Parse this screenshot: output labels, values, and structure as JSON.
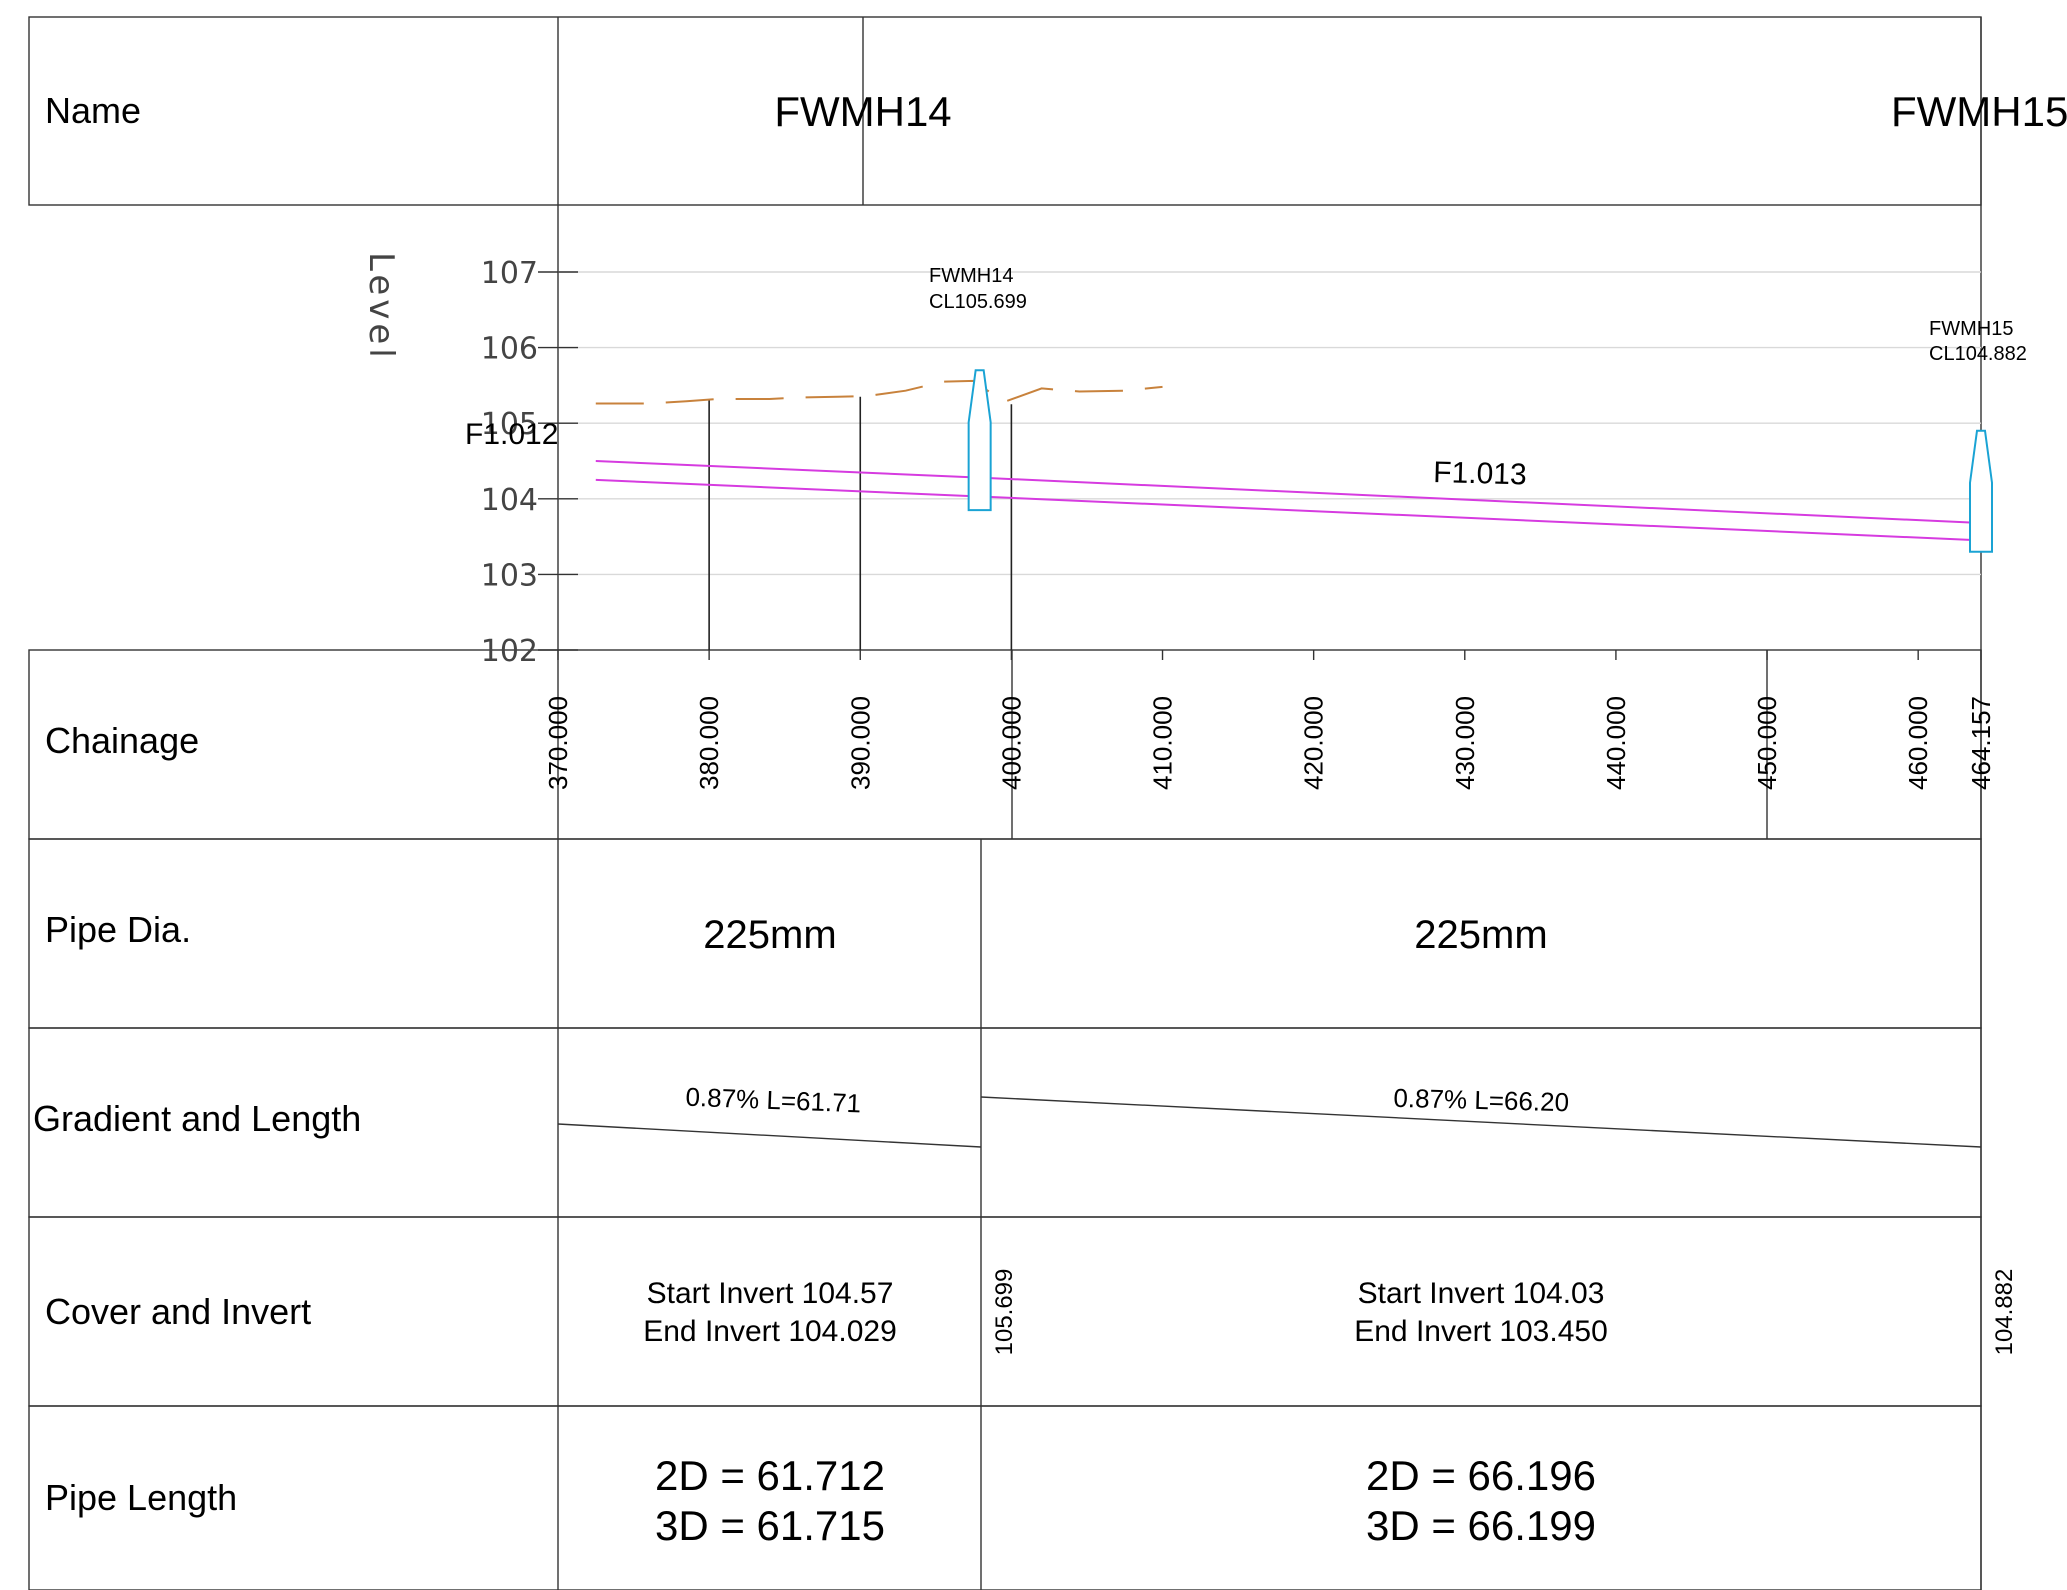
{
  "rows": {
    "name": "Name",
    "level": "Level",
    "chainage": "Chainage",
    "pipe_dia": "Pipe Dia.",
    "gradient": "Gradient and Length",
    "cover": "Cover and Invert",
    "pipe_length": "Pipe Length"
  },
  "manholes": [
    {
      "name": "FWMH14",
      "label": "FWMH14",
      "cover_label": "CL105.699",
      "chainage": 397.9,
      "cover_level": "105.699",
      "body_top": 105.7,
      "body_bottom": 103.85
    },
    {
      "name": "FWMH15",
      "label": "FWMH15",
      "cover_label": "CL104.882",
      "chainage": 464.157,
      "cover_level": "104.882",
      "body_top": 104.9,
      "body_bottom": 103.3
    }
  ],
  "pipes": [
    {
      "ref": "F1.012",
      "dia": "225mm",
      "gradient": "0.87% L=61.71",
      "invert": [
        "Start Invert 104.57",
        "End Invert 104.029"
      ],
      "length": [
        "2D = 61.712",
        "3D = 61.715"
      ]
    },
    {
      "ref": "F1.013",
      "dia": "225mm",
      "gradient": "0.87% L=66.20",
      "invert": [
        "Start Invert 104.03",
        "End Invert 103.450"
      ],
      "length": [
        "2D = 66.196",
        "3D = 66.199"
      ]
    }
  ],
  "colors": {
    "pipe": "#d63be0",
    "ground": "#c8823c",
    "manhole": "#1aa3d4",
    "grid": "#d9d9d9",
    "frame": "#333333"
  },
  "chart_data": {
    "type": "line",
    "xlabel": "Chainage",
    "ylabel": "Level",
    "xlim": [
      370.0,
      464.157
    ],
    "ylim": [
      102,
      107
    ],
    "yticks": [
      "102",
      "103",
      "104",
      "105",
      "106",
      "107"
    ],
    "xticks": [
      "370.000",
      "380.000",
      "390.000",
      "400.000",
      "410.000",
      "420.000",
      "430.000",
      "440.000",
      "450.000",
      "460.000",
      "464.157"
    ],
    "xtick_values": [
      370,
      380,
      390,
      400,
      410,
      420,
      430,
      440,
      450,
      460,
      464.157
    ],
    "series": [
      {
        "kind": "ground",
        "x": [
          372.5,
          376,
          378.5,
          380.5,
          384,
          386,
          388.5,
          390.5,
          393,
          395.5,
          397.5,
          399.5,
          402,
          404.5,
          407.5,
          410
        ],
        "y": [
          105.26,
          105.26,
          105.29,
          105.32,
          105.32,
          105.34,
          105.35,
          105.36,
          105.43,
          105.55,
          105.56,
          105.28,
          105.46,
          105.42,
          105.43,
          105.48
        ]
      },
      {
        "kind": "pipe-obvert",
        "x": [
          372.5,
          397.9,
          464.157
        ],
        "y": [
          104.5,
          104.28,
          103.68
        ]
      },
      {
        "kind": "pipe-invert",
        "x": [
          372.5,
          397.9,
          464.157
        ],
        "y": [
          104.25,
          104.03,
          103.45
        ]
      },
      {
        "kind": "verticals",
        "x": [
          380,
          390,
          400
        ],
        "y": [
          105.3,
          105.35,
          105.25
        ]
      }
    ]
  }
}
